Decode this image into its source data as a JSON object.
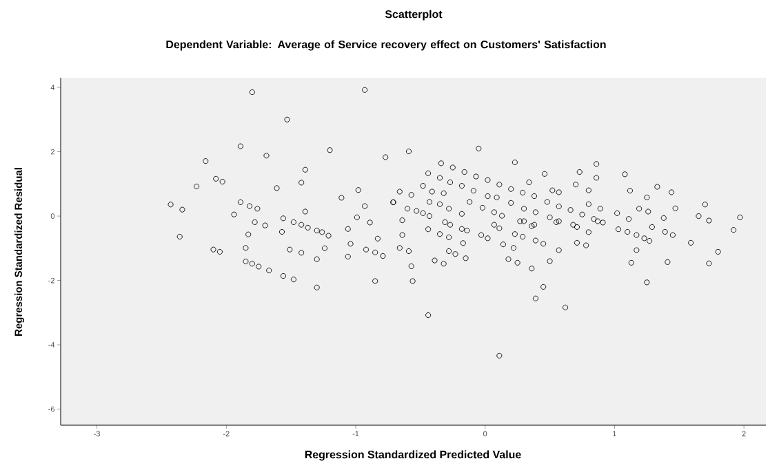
{
  "chart_data": {
    "type": "scatter",
    "title": "Scatterplot",
    "subtitle": "Dependent Variable: Average of Service recovery effect on Customers' Satisfaction",
    "xlabel": "Regression Standardized Predicted Value",
    "ylabel": "Regression Standardized Residual",
    "xlim": [
      -3.28,
      2.17
    ],
    "ylim": [
      -6.5,
      4.3
    ],
    "xticks": [
      -3,
      -2,
      -1,
      0,
      1,
      2
    ],
    "yticks": [
      -6,
      -4,
      -2,
      0,
      2,
      4
    ],
    "grid": false,
    "marker": "circle",
    "series": [
      {
        "color": "#000000",
        "x": [
          -1.8,
          -1.53,
          -0.93,
          -1.89,
          -1.69,
          -1.2,
          -0.77,
          -2.16,
          -1.39,
          -1.42,
          -2.08,
          -2.03,
          -2.23,
          -1.61,
          -0.98,
          -1.11,
          -0.71,
          -0.93,
          -2.43,
          -2.34,
          -1.89,
          -1.82,
          -1.76,
          -1.94,
          -1.39,
          -0.99,
          -0.89,
          -1.06,
          -1.78,
          -1.7,
          -1.56,
          -1.48,
          -1.42,
          -1.37,
          -1.3,
          -1.26,
          -1.21,
          -1.57,
          -2.36,
          -1.83,
          -1.04,
          -0.83,
          -1.85,
          -2.1,
          -2.05,
          -1.51,
          -1.42,
          -1.3,
          -1.24,
          -1.06,
          -0.92,
          -0.85,
          -0.79,
          -1.85,
          -1.8,
          -1.75,
          -1.67,
          -1.56,
          -1.48,
          -1.3,
          -0.85,
          -0.59,
          -0.05,
          0.23,
          -0.34,
          -0.25,
          -0.16,
          -0.07,
          0.02,
          0.11,
          0.2,
          0.29,
          0.38,
          0.48,
          0.57,
          0.66,
          0.75,
          0.84,
          0.91,
          -0.44,
          -0.35,
          -0.27,
          -0.18,
          -0.09,
          0.02,
          0.09,
          0.2,
          0.3,
          0.39,
          0.5,
          0.57,
          0.68,
          0.71,
          -0.48,
          -0.41,
          -0.32,
          -0.43,
          -0.35,
          -0.28,
          -0.18,
          -0.12,
          -0.02,
          0.07,
          0.13,
          0.27,
          0.38,
          0.55,
          -0.66,
          -0.57,
          -0.71,
          -0.6,
          -0.53,
          -0.48,
          -0.43,
          -0.64,
          -0.31,
          -0.27,
          -0.44,
          -0.18,
          -0.14,
          0.07,
          0.11,
          0.3,
          0.36,
          -0.35,
          -0.28,
          -0.64,
          -0.03,
          0.02,
          0.23,
          0.29,
          0.39,
          0.45,
          0.8,
          0.71,
          0.78,
          0.57,
          -0.17,
          -0.66,
          -0.59,
          -0.28,
          -0.23,
          -0.15,
          -0.39,
          -0.32,
          0.14,
          0.22,
          0.18,
          0.25,
          0.36,
          0.5,
          -0.57,
          -0.56,
          0.45,
          0.39,
          0.62,
          0.86,
          0.73,
          0.86,
          0.46,
          0.34,
          0.52,
          0.57,
          0.7,
          0.8,
          0.8,
          0.89,
          1.08,
          1.12,
          1.25,
          1.33,
          1.44,
          1.19,
          1.26,
          1.38,
          1.47,
          1.7,
          1.65,
          1.73,
          1.97,
          1.92,
          1.59,
          1.8,
          1.73,
          1.41,
          1.39,
          1.45,
          1.29,
          1.27,
          1.17,
          1.13,
          1.25,
          1.02,
          1.11,
          1.03,
          1.1,
          1.17,
          1.23,
          0.87,
          -0.44,
          0.11
        ],
        "values": [
          3.85,
          3.0,
          3.92,
          2.17,
          1.88,
          2.05,
          1.83,
          1.71,
          1.44,
          1.04,
          1.16,
          1.07,
          0.92,
          0.87,
          0.81,
          0.57,
          0.43,
          0.31,
          0.36,
          0.2,
          0.43,
          0.31,
          0.23,
          0.05,
          0.14,
          -0.04,
          -0.2,
          -0.4,
          -0.19,
          -0.29,
          -0.07,
          -0.19,
          -0.27,
          -0.36,
          -0.45,
          -0.5,
          -0.61,
          -0.49,
          -0.64,
          -0.57,
          -0.86,
          -0.7,
          -0.99,
          -1.04,
          -1.11,
          -1.04,
          -1.14,
          -1.34,
          -1.0,
          -1.26,
          -1.04,
          -1.13,
          -1.24,
          -1.41,
          -1.48,
          -1.57,
          -1.69,
          -1.86,
          -1.97,
          -2.22,
          -2.02,
          2.01,
          2.1,
          1.67,
          1.64,
          1.51,
          1.37,
          1.23,
          1.12,
          0.98,
          0.84,
          0.73,
          0.62,
          0.44,
          0.3,
          0.19,
          0.05,
          -0.09,
          -0.2,
          1.33,
          1.19,
          1.05,
          0.94,
          0.79,
          0.62,
          0.58,
          0.41,
          0.23,
          0.12,
          -0.04,
          -0.16,
          -0.27,
          -0.34,
          0.94,
          0.76,
          0.71,
          0.44,
          0.37,
          0.23,
          0.07,
          0.44,
          0.26,
          0.12,
          0.01,
          -0.16,
          -0.27,
          -0.19,
          0.76,
          0.66,
          0.43,
          0.23,
          0.16,
          0.09,
          0.0,
          -0.13,
          -0.19,
          -0.27,
          -0.41,
          -0.4,
          -0.45,
          -0.27,
          -0.38,
          -0.16,
          -0.31,
          -0.56,
          -0.66,
          -0.59,
          -0.59,
          -0.69,
          -0.56,
          -0.64,
          -0.76,
          -0.86,
          -0.5,
          -0.83,
          -0.91,
          -1.06,
          -0.84,
          -0.99,
          -1.09,
          -1.09,
          -1.18,
          -1.31,
          -1.38,
          -1.48,
          -0.88,
          -0.99,
          -1.34,
          -1.45,
          -1.63,
          -1.4,
          -1.56,
          -2.02,
          -2.2,
          -2.56,
          -2.84,
          1.62,
          1.37,
          1.19,
          1.31,
          1.05,
          0.8,
          0.74,
          0.98,
          0.8,
          0.37,
          0.23,
          1.3,
          0.79,
          0.58,
          0.91,
          0.74,
          0.23,
          0.14,
          -0.06,
          0.24,
          0.36,
          0.0,
          -0.14,
          -0.04,
          -0.43,
          -0.83,
          -1.11,
          -1.47,
          -1.43,
          -0.49,
          -0.59,
          -0.34,
          -0.77,
          -1.06,
          -1.45,
          -2.06,
          0.09,
          -0.09,
          -0.41,
          -0.49,
          -0.59,
          -0.69,
          -0.16,
          -3.08,
          -4.34
        ]
      }
    ]
  }
}
